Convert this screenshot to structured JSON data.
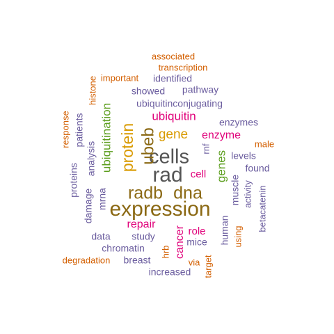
{
  "colors": {
    "orange": "#d35f00",
    "slate": "#6a5c9e",
    "gold": "#d99a00",
    "brown": "#8b6914",
    "magenta": "#e0007a",
    "green": "#5c9e1e",
    "gray": "#555555"
  },
  "chart_data": {
    "type": "wordcloud",
    "title": "",
    "words": [
      {
        "text": "expression",
        "weight": 30,
        "color": "brown"
      },
      {
        "text": "rad",
        "weight": 30,
        "color": "gray"
      },
      {
        "text": "cells",
        "weight": 29,
        "color": "gray"
      },
      {
        "text": "radb",
        "weight": 25,
        "color": "brown"
      },
      {
        "text": "dna",
        "weight": 25,
        "color": "brown"
      },
      {
        "text": "ubeb",
        "weight": 24,
        "color": "brown"
      },
      {
        "text": "protein",
        "weight": 23,
        "color": "gold"
      },
      {
        "text": "gene",
        "weight": 19,
        "color": "gold"
      },
      {
        "text": "ubiquitin",
        "weight": 17,
        "color": "magenta"
      },
      {
        "text": "ubiquitination",
        "weight": 17,
        "color": "green"
      },
      {
        "text": "genes",
        "weight": 17,
        "color": "green"
      },
      {
        "text": "enzyme",
        "weight": 16,
        "color": "magenta"
      },
      {
        "text": "repair",
        "weight": 16,
        "color": "magenta"
      },
      {
        "text": "cancer",
        "weight": 16,
        "color": "magenta"
      },
      {
        "text": "role",
        "weight": 15,
        "color": "magenta"
      },
      {
        "text": "cell",
        "weight": 15,
        "color": "magenta"
      },
      {
        "text": "ubiquitinconjugating",
        "weight": 14,
        "color": "slate"
      },
      {
        "text": "showed",
        "weight": 14,
        "color": "slate"
      },
      {
        "text": "pathway",
        "weight": 14,
        "color": "slate"
      },
      {
        "text": "identified",
        "weight": 14,
        "color": "slate"
      },
      {
        "text": "enzymes",
        "weight": 14,
        "color": "slate"
      },
      {
        "text": "levels",
        "weight": 14,
        "color": "slate"
      },
      {
        "text": "found",
        "weight": 14,
        "color": "slate"
      },
      {
        "text": "study",
        "weight": 14,
        "color": "slate"
      },
      {
        "text": "data",
        "weight": 14,
        "color": "slate"
      },
      {
        "text": "chromatin",
        "weight": 14,
        "color": "slate"
      },
      {
        "text": "breast",
        "weight": 14,
        "color": "slate"
      },
      {
        "text": "mice",
        "weight": 14,
        "color": "slate"
      },
      {
        "text": "increased",
        "weight": 14,
        "color": "slate"
      },
      {
        "text": "analysis",
        "weight": 14,
        "color": "slate"
      },
      {
        "text": "damage",
        "weight": 14,
        "color": "slate"
      },
      {
        "text": "mrna",
        "weight": 14,
        "color": "slate"
      },
      {
        "text": "patients",
        "weight": 14,
        "color": "slate"
      },
      {
        "text": "proteins",
        "weight": 14,
        "color": "slate"
      },
      {
        "text": "muscle",
        "weight": 14,
        "color": "slate"
      },
      {
        "text": "human",
        "weight": 14,
        "color": "slate"
      },
      {
        "text": "activity",
        "weight": 13,
        "color": "slate"
      },
      {
        "text": "betacatenin",
        "weight": 13,
        "color": "slate"
      },
      {
        "text": "rnf",
        "weight": 13,
        "color": "slate"
      },
      {
        "text": "associated",
        "weight": 13,
        "color": "orange"
      },
      {
        "text": "transcription",
        "weight": 13,
        "color": "orange"
      },
      {
        "text": "important",
        "weight": 13,
        "color": "orange"
      },
      {
        "text": "histone",
        "weight": 13,
        "color": "orange"
      },
      {
        "text": "response",
        "weight": 13,
        "color": "orange"
      },
      {
        "text": "male",
        "weight": 13,
        "color": "orange"
      },
      {
        "text": "degradation",
        "weight": 13,
        "color": "orange"
      },
      {
        "text": "using",
        "weight": 13,
        "color": "orange"
      },
      {
        "text": "hrb",
        "weight": 13,
        "color": "orange"
      },
      {
        "text": "via",
        "weight": 13,
        "color": "orange"
      },
      {
        "text": "target",
        "weight": 13,
        "color": "orange"
      }
    ]
  }
}
